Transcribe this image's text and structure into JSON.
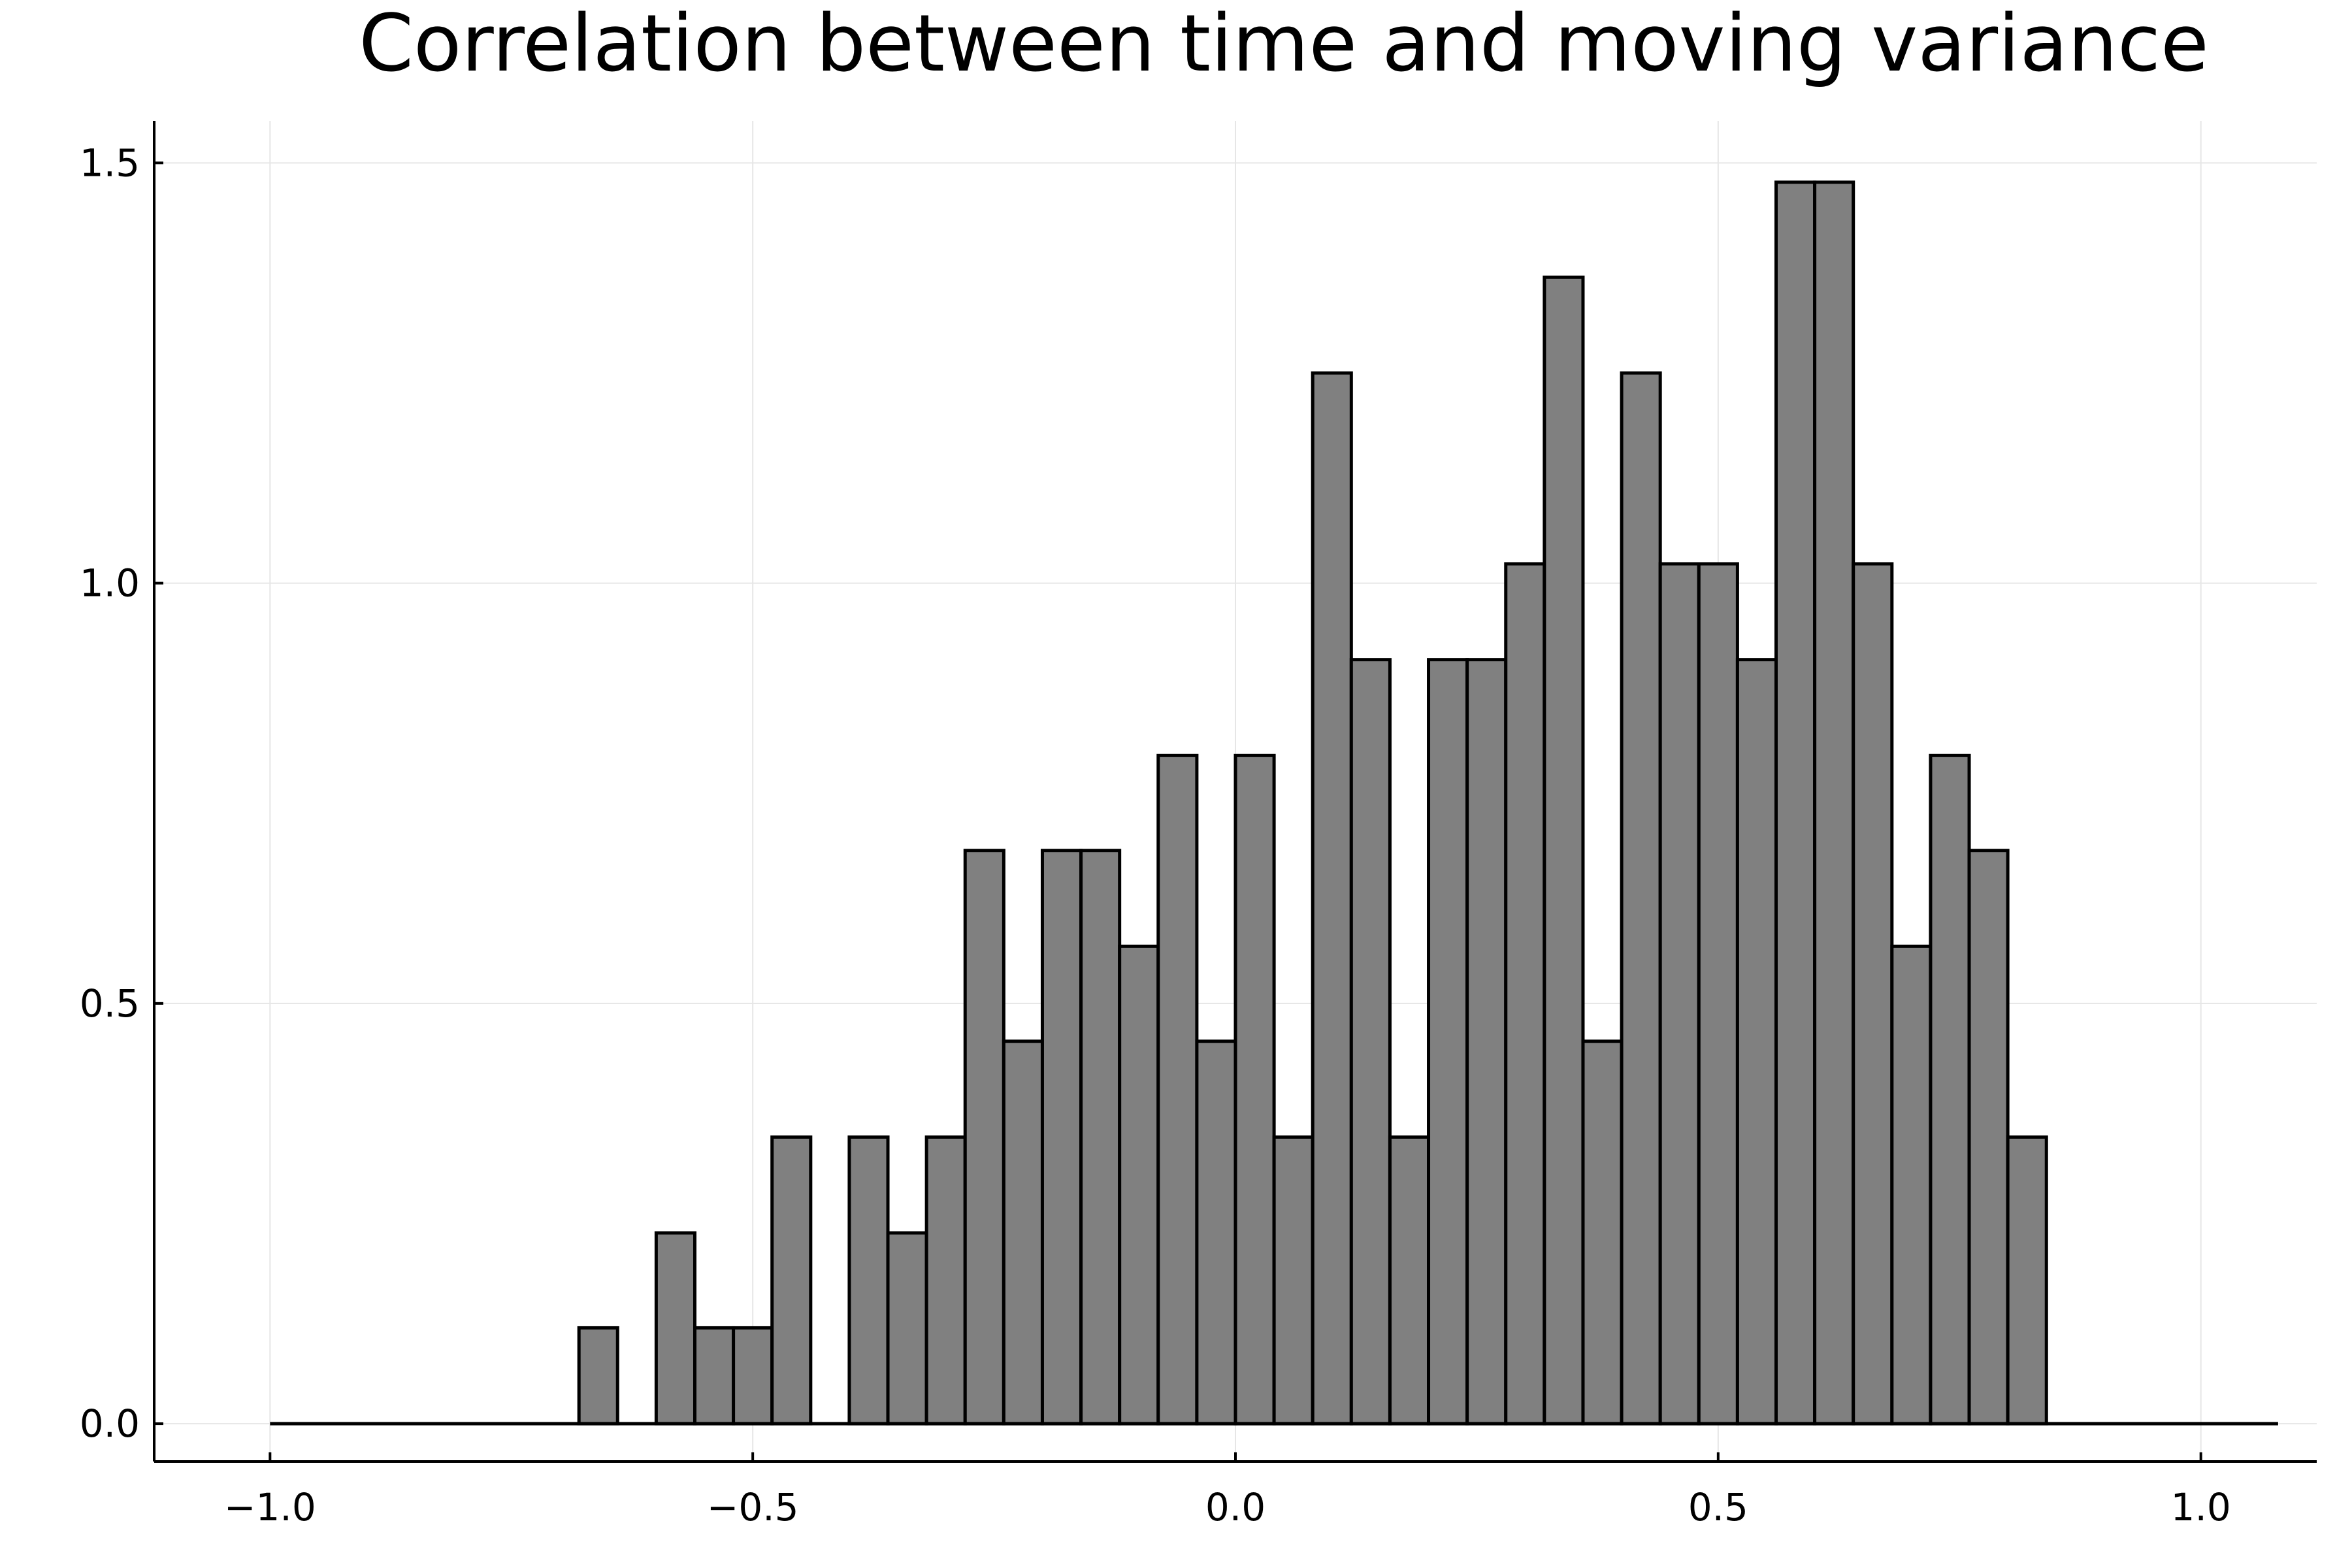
{
  "chart_data": {
    "type": "bar",
    "title": "Correlation between time and moving variance",
    "xlabel": "",
    "ylabel": "",
    "xlim": [
      -1.12,
      1.12
    ],
    "ylim": [
      -0.045,
      1.55
    ],
    "x_ticks": [
      -1.0,
      -0.5,
      0.0,
      0.5,
      1.0
    ],
    "x_tick_labels": [
      "−1.0",
      "−0.5",
      "0.0",
      "0.5",
      "1.0"
    ],
    "y_ticks": [
      0.0,
      0.5,
      1.0,
      1.5
    ],
    "y_tick_labels": [
      "0.0",
      "0.5",
      "1.0",
      "1.5"
    ],
    "grid": true,
    "legend": "none",
    "bar_color": "#808080",
    "edge_color": "#000000",
    "bin_width": 0.04,
    "bin_start": -1.0,
    "values": [
      0,
      0,
      0,
      0,
      0,
      0,
      0,
      0,
      0.114,
      0,
      0.227,
      0.114,
      0.114,
      0.341,
      0,
      0.341,
      0.227,
      0.341,
      0.682,
      0.455,
      0.682,
      0.682,
      0.568,
      0.795,
      0.455,
      0.795,
      0.341,
      1.25,
      0.909,
      0.341,
      0.909,
      0.909,
      1.023,
      1.364,
      0.455,
      1.25,
      1.023,
      1.023,
      0.909,
      1.477,
      1.477,
      1.023,
      0.568,
      0.795,
      0.682,
      0.341,
      0,
      0,
      0,
      0,
      0,
      0
    ]
  }
}
